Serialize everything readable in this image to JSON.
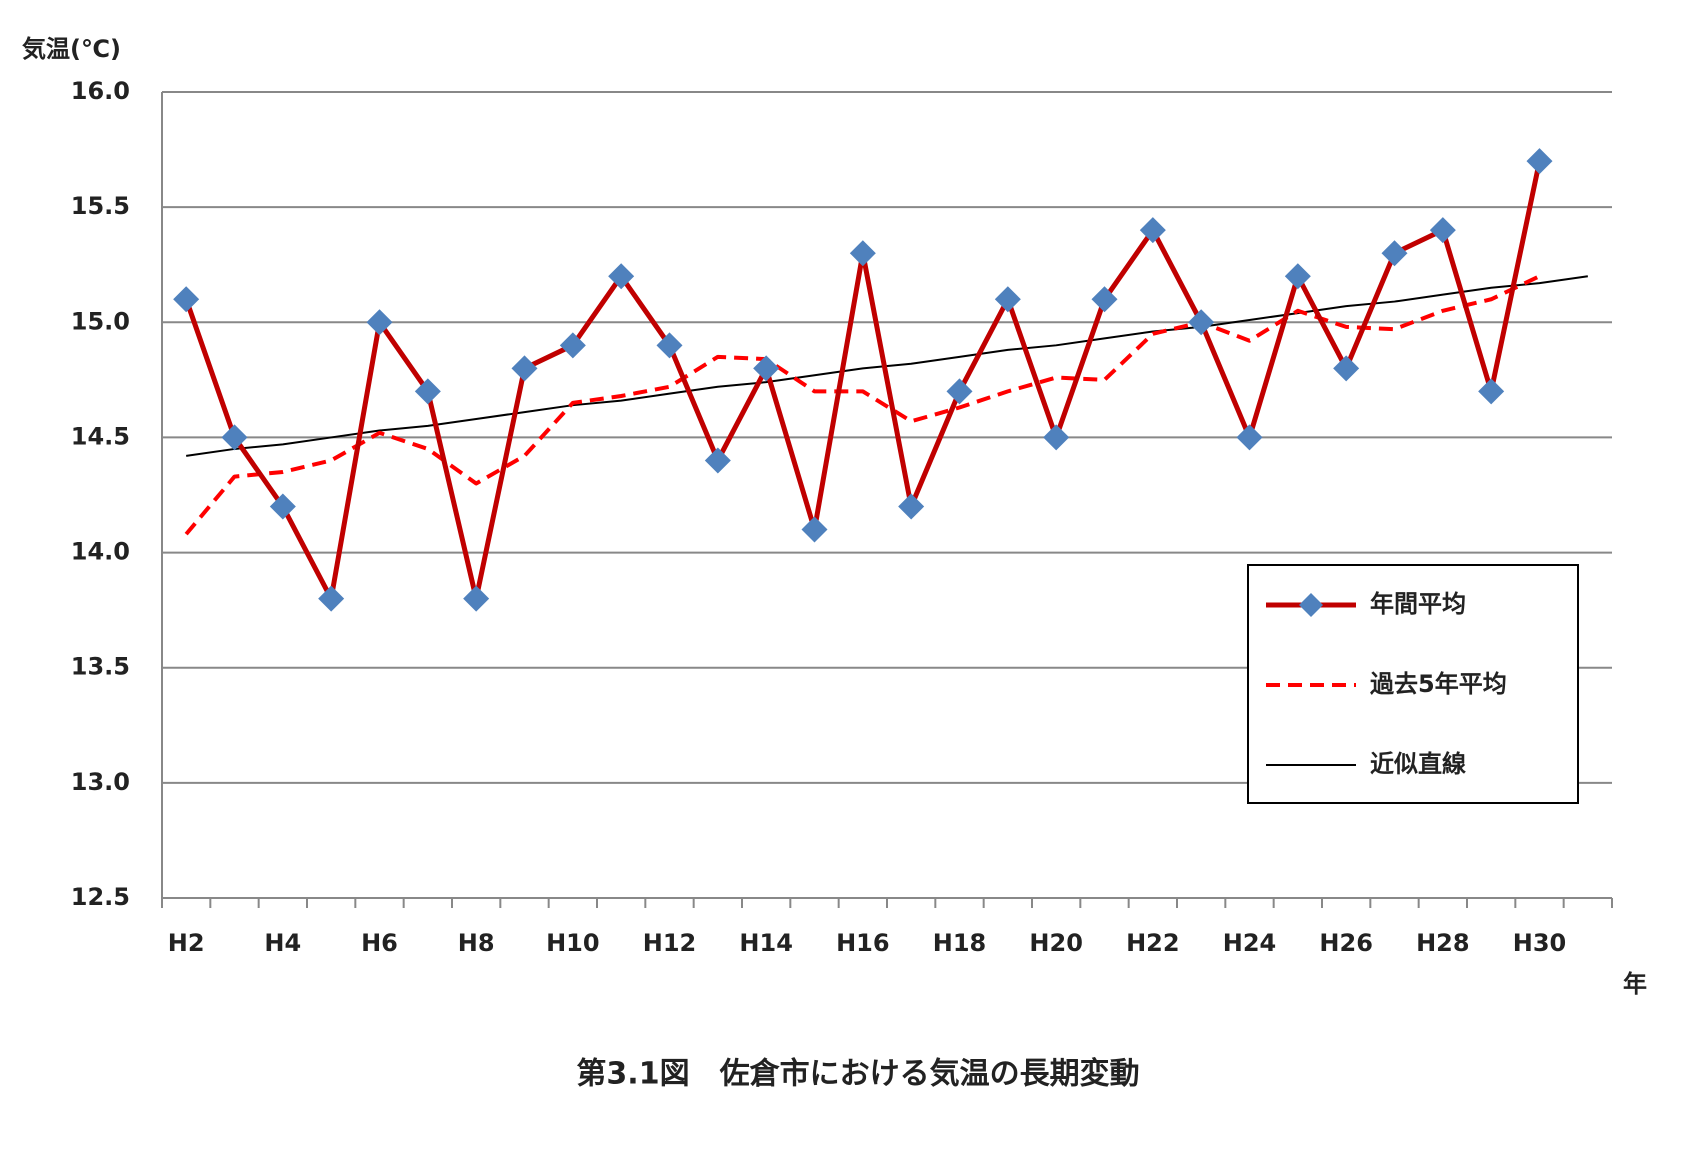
{
  "chart_data": {
    "type": "line",
    "y_label": "気温(℃)",
    "x_label": "年",
    "caption": "第3.1図　佐倉市における気温の長期変動",
    "categories": [
      "H2",
      null,
      "H4",
      null,
      "H6",
      null,
      "H8",
      null,
      "H10",
      null,
      "H12",
      null,
      "H14",
      null,
      "H16",
      null,
      "H18",
      null,
      "H20",
      null,
      "H22",
      null,
      "H24",
      null,
      "H26",
      null,
      "H28",
      null,
      "H30",
      null
    ],
    "series": [
      {
        "name": "年間平均",
        "color": "#c00000",
        "marker_color": "#4f81bd",
        "style": "solid-marker",
        "values": [
          15.1,
          14.5,
          14.2,
          13.8,
          15.0,
          14.7,
          13.8,
          14.8,
          14.9,
          15.2,
          14.9,
          14.4,
          14.8,
          14.1,
          15.3,
          14.2,
          14.7,
          15.1,
          14.5,
          15.1,
          15.4,
          15.0,
          14.5,
          15.2,
          14.8,
          15.3,
          15.4,
          14.7,
          15.7,
          null
        ]
      },
      {
        "name": "過去5年平均",
        "color": "#ff0000",
        "style": "dashed",
        "values": [
          14.08,
          14.33,
          14.35,
          14.4,
          14.52,
          14.45,
          14.3,
          14.42,
          14.65,
          14.68,
          14.72,
          14.85,
          14.84,
          14.7,
          14.7,
          14.57,
          14.63,
          14.7,
          14.76,
          14.75,
          14.95,
          15.0,
          14.92,
          15.05,
          14.98,
          14.97,
          15.05,
          15.1,
          15.2,
          null
        ]
      },
      {
        "name": "近似直線",
        "color": "#000000",
        "style": "thin",
        "values": [
          14.42,
          14.45,
          14.47,
          14.5,
          14.53,
          14.55,
          14.58,
          14.61,
          14.64,
          14.66,
          14.69,
          14.72,
          14.74,
          14.77,
          14.8,
          14.82,
          14.85,
          14.88,
          14.9,
          14.93,
          14.96,
          14.98,
          15.01,
          15.04,
          15.07,
          15.09,
          15.12,
          15.15,
          15.17,
          15.2
        ]
      }
    ],
    "ylim": [
      12.5,
      16.0
    ],
    "yticks": [
      12.5,
      {
        "value": 13.0,
        "label": "13.0"
      },
      13.5,
      {
        "value": 14.0,
        "label": "14.0"
      },
      14.5,
      {
        "value": 15.0,
        "label": "15.0"
      },
      15.5,
      {
        "value": 16.0,
        "label": "16.0"
      }
    ],
    "grid": true,
    "legend": "lower-right"
  }
}
